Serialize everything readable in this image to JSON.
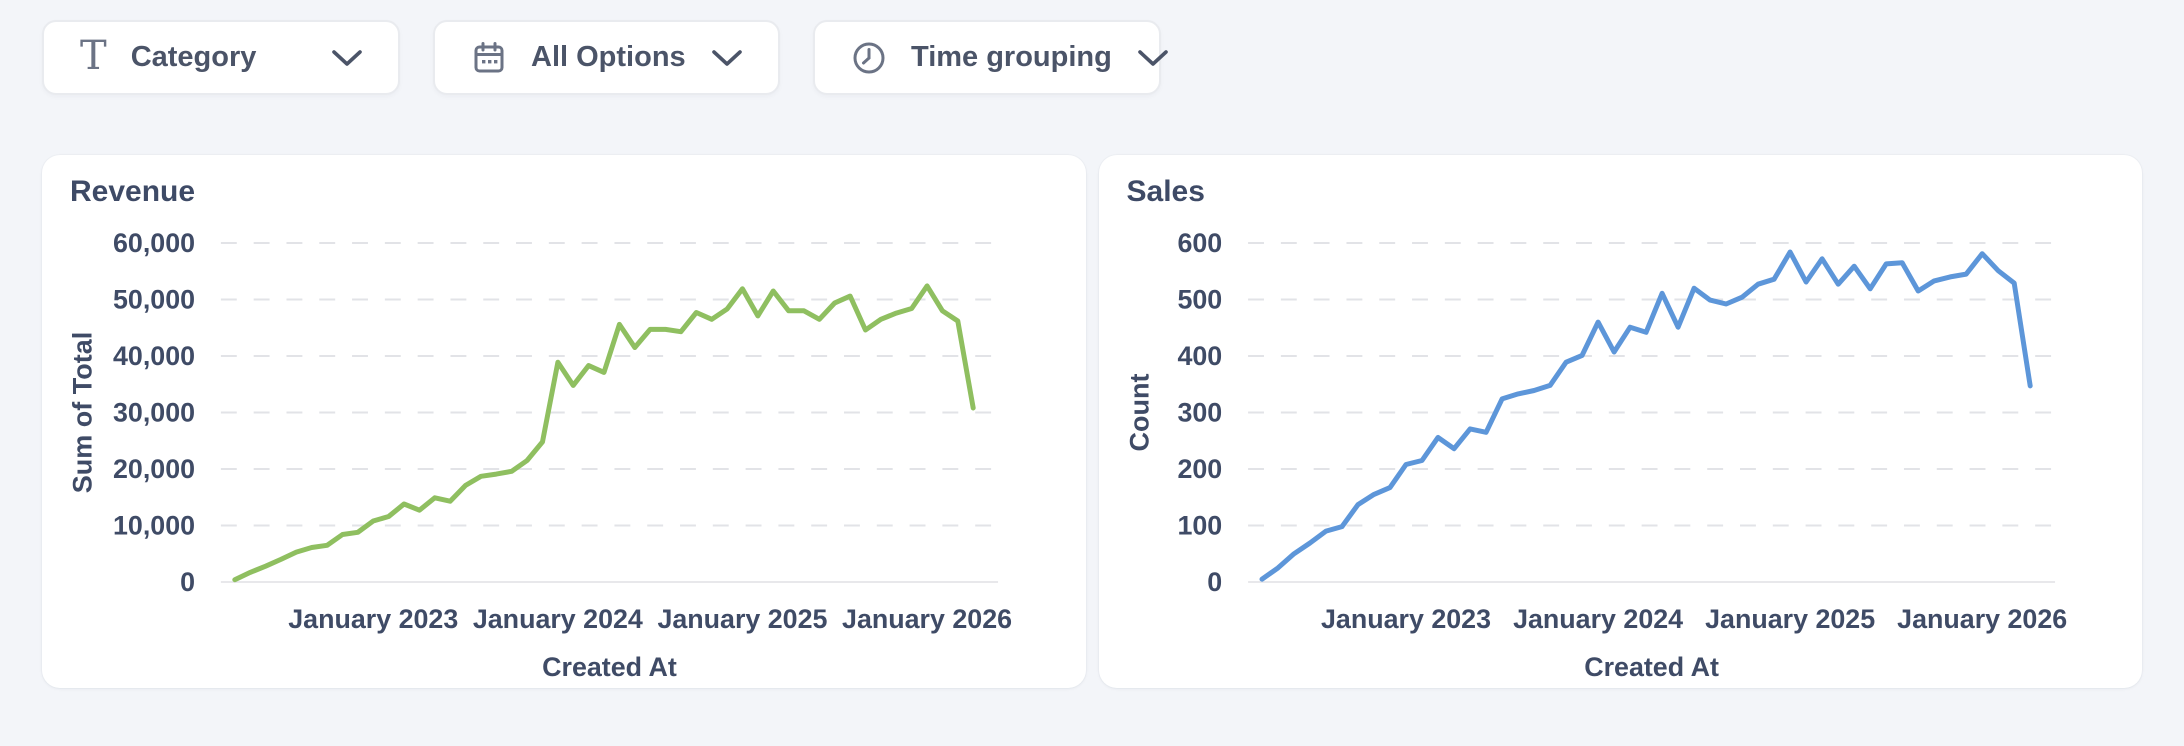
{
  "toolbar": {
    "filters": [
      {
        "label": "Category",
        "icon": "type-icon"
      },
      {
        "label": "All Options",
        "icon": "calendar-icon"
      },
      {
        "label": "Time grouping",
        "icon": "clock-icon"
      }
    ]
  },
  "chart_data": [
    {
      "type": "line",
      "title": "Revenue",
      "xlabel": "Created At",
      "ylabel": "Sum of Total",
      "color": "#8fbf60",
      "ylim": [
        0,
        60000
      ],
      "ytick_step": 10000,
      "grid": "dashed-horizontal",
      "legend": "none",
      "x_tick_labels": [
        "January 2023",
        "January 2024",
        "January 2025",
        "January 2026"
      ],
      "x_tick_indices": [
        9,
        21,
        33,
        45
      ],
      "x": [
        "2022-04",
        "2022-05",
        "2022-06",
        "2022-07",
        "2022-08",
        "2022-09",
        "2022-10",
        "2022-11",
        "2022-12",
        "2023-01",
        "2023-02",
        "2023-03",
        "2023-04",
        "2023-05",
        "2023-06",
        "2023-07",
        "2023-08",
        "2023-09",
        "2023-10",
        "2023-11",
        "2023-12",
        "2024-01",
        "2024-02",
        "2024-03",
        "2024-04",
        "2024-05",
        "2024-06",
        "2024-07",
        "2024-08",
        "2024-09",
        "2024-10",
        "2024-11",
        "2024-12",
        "2025-01",
        "2025-02",
        "2025-03",
        "2025-04",
        "2025-05",
        "2025-06",
        "2025-07",
        "2025-08",
        "2025-09",
        "2025-10",
        "2025-11",
        "2025-12",
        "2026-01",
        "2026-02",
        "2026-03",
        "2026-04"
      ],
      "values": [
        400,
        1700,
        2800,
        4000,
        5300,
        6100,
        6500,
        8400,
        8800,
        10800,
        11600,
        13800,
        12700,
        14900,
        14300,
        17100,
        18700,
        19100,
        19600,
        21500,
        24800,
        38900,
        34800,
        38300,
        37100,
        45600,
        41500,
        44700,
        44700,
        44300,
        47700,
        46500,
        48300,
        51900,
        47100,
        51500,
        48000,
        48000,
        46500,
        49400,
        50600,
        44600,
        46500,
        47600,
        48400,
        52400,
        48000,
        46200,
        30800
      ]
    },
    {
      "type": "line",
      "title": "Sales",
      "xlabel": "Created At",
      "ylabel": "Count",
      "color": "#5d96d9",
      "ylim": [
        0,
        600
      ],
      "ytick_step": 100,
      "grid": "dashed-horizontal",
      "legend": "none",
      "x_tick_labels": [
        "January 2023",
        "January 2024",
        "January 2025",
        "January 2026"
      ],
      "x_tick_indices": [
        9,
        21,
        33,
        45
      ],
      "x": [
        "2022-04",
        "2022-05",
        "2022-06",
        "2022-07",
        "2022-08",
        "2022-09",
        "2022-10",
        "2022-11",
        "2022-12",
        "2023-01",
        "2023-02",
        "2023-03",
        "2023-04",
        "2023-05",
        "2023-06",
        "2023-07",
        "2023-08",
        "2023-09",
        "2023-10",
        "2023-11",
        "2023-12",
        "2024-01",
        "2024-02",
        "2024-03",
        "2024-04",
        "2024-05",
        "2024-06",
        "2024-07",
        "2024-08",
        "2024-09",
        "2024-10",
        "2024-11",
        "2024-12",
        "2025-01",
        "2025-02",
        "2025-03",
        "2025-04",
        "2025-05",
        "2025-06",
        "2025-07",
        "2025-08",
        "2025-09",
        "2025-10",
        "2025-11",
        "2025-12",
        "2026-01",
        "2026-02",
        "2026-03",
        "2026-04"
      ],
      "values": [
        5,
        25,
        50,
        69,
        90,
        98,
        137,
        155,
        167,
        208,
        215,
        256,
        236,
        271,
        265,
        324,
        333,
        339,
        348,
        389,
        401,
        460,
        407,
        451,
        442,
        511,
        451,
        520,
        499,
        492,
        504,
        527,
        536,
        584,
        531,
        572,
        527,
        559,
        519,
        563,
        565,
        515,
        533,
        540,
        545,
        581,
        551,
        529,
        347
      ]
    }
  ],
  "theme": {
    "page_background": "#f3f5f9",
    "card_background": "#ffffff",
    "text_color": "#3f4b66",
    "grid_color": "#e2e3e7",
    "revenue_line_color": "#8fbf60",
    "sales_line_color": "#5d96d9"
  }
}
